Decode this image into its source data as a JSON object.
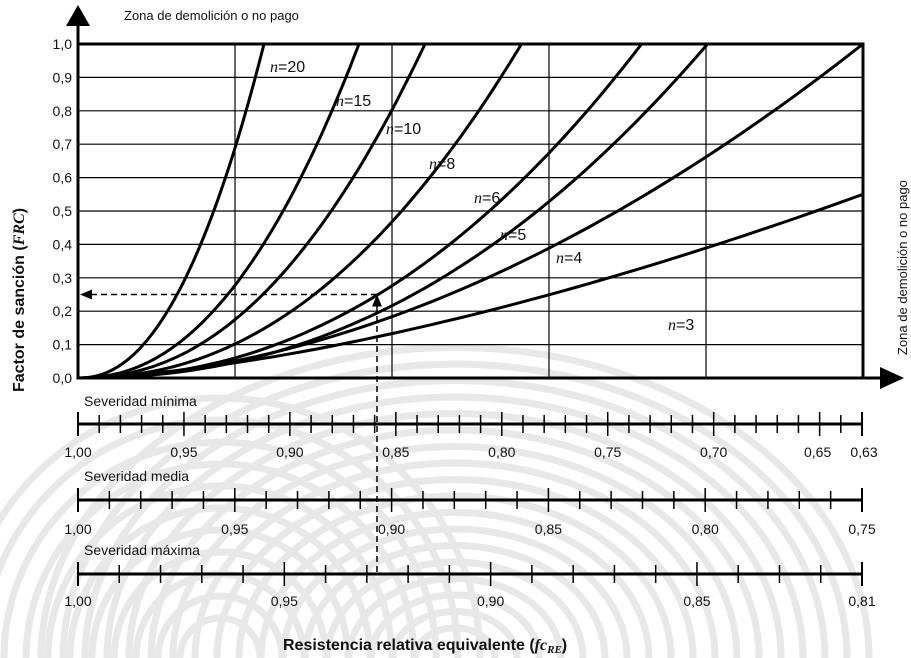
{
  "chart_data": {
    "type": "line",
    "top_zone_label": "Zona de demolición o no pago",
    "right_zone_label": "Zona de demolición o no pago",
    "ylabel": {
      "text": "Factor de sanción (",
      "italic": "FRC",
      "end": ")"
    },
    "xlabel": {
      "text": "Resistencia relativa equivalente (",
      "italic": "fc",
      "sub": "RE",
      "end": ")"
    },
    "ylim": [
      0,
      1
    ],
    "yticks": [
      "0,0",
      "0,1",
      "0,2",
      "0,3",
      "0,4",
      "0,5",
      "0,6",
      "0,7",
      "0,8",
      "0,9",
      "1,0"
    ],
    "grid": true,
    "series": [
      {
        "name": "n=20",
        "n": 20,
        "label_prefix": "n",
        "label_value": "=20"
      },
      {
        "name": "n=15",
        "n": 15,
        "label_prefix": "n",
        "label_value": "=15"
      },
      {
        "name": "n=10",
        "n": 10,
        "label_prefix": "n",
        "label_value": "=10"
      },
      {
        "name": "n=8",
        "n": 8,
        "label_prefix": "n",
        "label_value": "=8"
      },
      {
        "name": "n=6",
        "n": 6,
        "label_prefix": "n",
        "label_value": "=6"
      },
      {
        "name": "n=5",
        "n": 5,
        "label_prefix": "n",
        "label_value": "=5"
      },
      {
        "name": "n=4",
        "n": 4,
        "label_prefix": "n",
        "label_value": "=4"
      },
      {
        "name": "n=3",
        "n": 3,
        "label_prefix": "n",
        "label_value": "=3"
      }
    ],
    "example": {
      "fc_RE_minima": 0.855,
      "FRC": 0.25
    },
    "scales": [
      {
        "title": "Severidad mínima",
        "range": [
          1.0,
          0.63
        ],
        "labels": [
          {
            "v": 1.0,
            "t": "1,00"
          },
          {
            "v": 0.95,
            "t": "0,95"
          },
          {
            "v": 0.9,
            "t": "0,90"
          },
          {
            "v": 0.85,
            "t": "0,85"
          },
          {
            "v": 0.8,
            "t": "0,80"
          },
          {
            "v": 0.75,
            "t": "0,75"
          },
          {
            "v": 0.7,
            "t": "0,70"
          },
          {
            "v": 0.65,
            "t": "0,65"
          },
          {
            "v": 0.63,
            "t": "0,63"
          }
        ],
        "minor_step": 0.01
      },
      {
        "title": "Severidad media",
        "range": [
          1.0,
          0.75
        ],
        "labels": [
          {
            "v": 1.0,
            "t": "1,00"
          },
          {
            "v": 0.95,
            "t": "0,95"
          },
          {
            "v": 0.9,
            "t": "0,90"
          },
          {
            "v": 0.85,
            "t": "0,85"
          },
          {
            "v": 0.8,
            "t": "0,80"
          },
          {
            "v": 0.75,
            "t": "0,75"
          }
        ],
        "minor_step": 0.01
      },
      {
        "title": "Severidad máxima",
        "range": [
          1.0,
          0.81
        ],
        "labels": [
          {
            "v": 1.0,
            "t": "1,00"
          },
          {
            "v": 0.95,
            "t": "0,95"
          },
          {
            "v": 0.9,
            "t": "0,90"
          },
          {
            "v": 0.85,
            "t": "0,85"
          },
          {
            "v": 0.81,
            "t": "0,81"
          }
        ],
        "minor_step": 0.01
      }
    ]
  }
}
